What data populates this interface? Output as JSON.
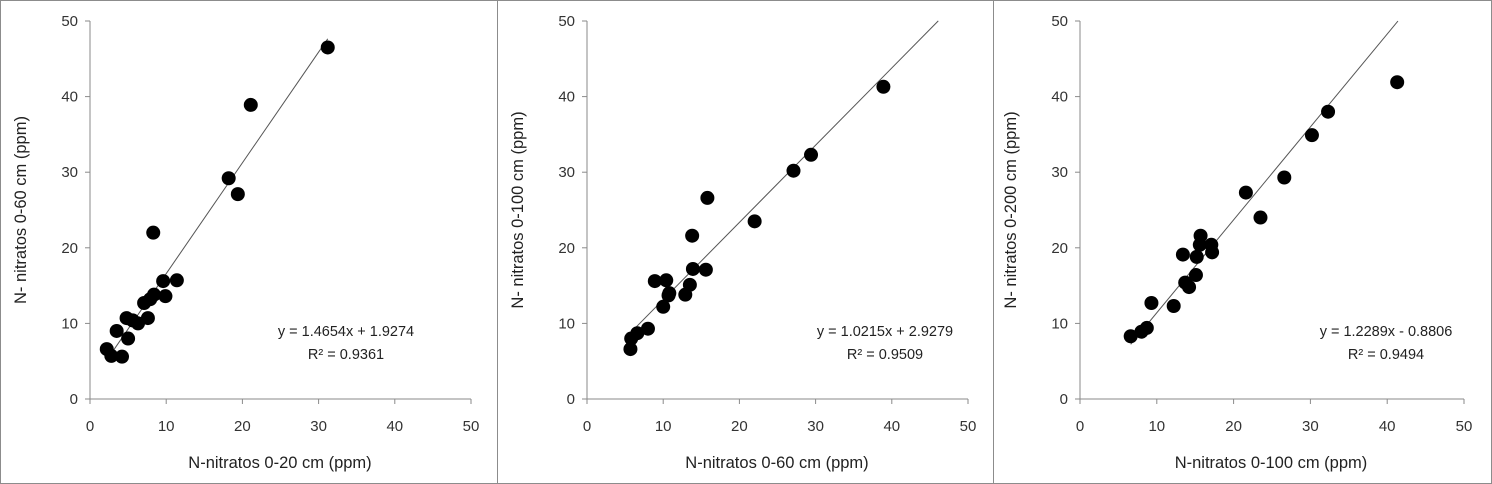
{
  "chart_data": [
    {
      "type": "scatter",
      "xlabel": "N-nitratos 0-20 cm (ppm)",
      "ylabel": "N- nitratos 0-60 cm (ppm)",
      "xlim": [
        0,
        50
      ],
      "ylim": [
        0,
        50
      ],
      "xticks": [
        "0",
        "10",
        "20",
        "30",
        "40",
        "50"
      ],
      "yticks": [
        "0",
        "10",
        "20",
        "30",
        "40",
        "50"
      ],
      "equation": "y = 1.4654x + 1.9274",
      "r2": "R² = 0.9361",
      "trendline": {
        "slope": 1.4654,
        "intercept": 1.9274,
        "x_range": [
          2.2,
          31.2
        ]
      },
      "points": [
        {
          "x": 2.2,
          "y": 6.6
        },
        {
          "x": 2.8,
          "y": 5.7
        },
        {
          "x": 3.5,
          "y": 9.0
        },
        {
          "x": 4.2,
          "y": 5.6
        },
        {
          "x": 4.8,
          "y": 10.7
        },
        {
          "x": 5.0,
          "y": 8.0
        },
        {
          "x": 5.6,
          "y": 10.4
        },
        {
          "x": 6.3,
          "y": 10.0
        },
        {
          "x": 7.1,
          "y": 12.7
        },
        {
          "x": 7.6,
          "y": 10.7
        },
        {
          "x": 7.9,
          "y": 13.2
        },
        {
          "x": 8.4,
          "y": 13.8
        },
        {
          "x": 8.3,
          "y": 22.0
        },
        {
          "x": 9.6,
          "y": 15.6
        },
        {
          "x": 9.9,
          "y": 13.6
        },
        {
          "x": 11.4,
          "y": 15.7
        },
        {
          "x": 18.2,
          "y": 29.2
        },
        {
          "x": 19.4,
          "y": 27.1
        },
        {
          "x": 21.1,
          "y": 38.9
        },
        {
          "x": 31.2,
          "y": 46.5
        }
      ]
    },
    {
      "type": "scatter",
      "xlabel": "N-nitratos 0-60 cm (ppm)",
      "ylabel": "N- nitratos 0-100 cm (ppm)",
      "xlim": [
        0,
        50
      ],
      "ylim": [
        0,
        50
      ],
      "xticks": [
        "0",
        "10",
        "20",
        "30",
        "40",
        "50"
      ],
      "yticks": [
        "0",
        "10",
        "20",
        "30",
        "40",
        "50"
      ],
      "equation": "y = 1.0215x + 2.9279",
      "r2": "R² = 0.9509",
      "trendline": {
        "slope": 1.0215,
        "intercept": 2.9279,
        "x_range": [
          5.8,
          46.1
        ]
      },
      "points": [
        {
          "x": 5.7,
          "y": 6.6
        },
        {
          "x": 5.8,
          "y": 8.0
        },
        {
          "x": 6.6,
          "y": 8.7
        },
        {
          "x": 8.0,
          "y": 9.3
        },
        {
          "x": 8.9,
          "y": 15.6
        },
        {
          "x": 10.0,
          "y": 12.2
        },
        {
          "x": 10.4,
          "y": 15.7
        },
        {
          "x": 10.7,
          "y": 13.7
        },
        {
          "x": 10.8,
          "y": 14.0
        },
        {
          "x": 12.9,
          "y": 13.8
        },
        {
          "x": 13.5,
          "y": 15.1
        },
        {
          "x": 13.8,
          "y": 21.6
        },
        {
          "x": 13.9,
          "y": 17.2
        },
        {
          "x": 15.6,
          "y": 17.1
        },
        {
          "x": 15.8,
          "y": 26.6
        },
        {
          "x": 22.0,
          "y": 23.5
        },
        {
          "x": 27.1,
          "y": 30.2
        },
        {
          "x": 29.4,
          "y": 32.3
        },
        {
          "x": 38.9,
          "y": 41.3
        }
      ]
    },
    {
      "type": "scatter",
      "xlabel": "N-nitratos 0-100 cm (ppm)",
      "ylabel": "N- nitratos 0-200 cm (ppm)",
      "xlim": [
        0,
        50
      ],
      "ylim": [
        0,
        50
      ],
      "xticks": [
        "0",
        "10",
        "20",
        "30",
        "40",
        "50"
      ],
      "yticks": [
        "0",
        "10",
        "20",
        "30",
        "40",
        "50"
      ],
      "equation": "y = 1.2289x - 0.8806",
      "r2": "R² = 0.9494",
      "trendline": {
        "slope": 1.2289,
        "intercept": -0.8806,
        "x_range": [
          6.6,
          41.4
        ]
      },
      "points": [
        {
          "x": 6.6,
          "y": 8.3
        },
        {
          "x": 8.0,
          "y": 8.9
        },
        {
          "x": 8.7,
          "y": 9.4
        },
        {
          "x": 9.3,
          "y": 12.7
        },
        {
          "x": 12.2,
          "y": 12.3
        },
        {
          "x": 13.4,
          "y": 19.1
        },
        {
          "x": 13.7,
          "y": 15.4
        },
        {
          "x": 14.2,
          "y": 14.8
        },
        {
          "x": 15.1,
          "y": 16.4
        },
        {
          "x": 15.2,
          "y": 18.8
        },
        {
          "x": 15.6,
          "y": 20.4
        },
        {
          "x": 15.7,
          "y": 21.6
        },
        {
          "x": 17.1,
          "y": 20.4
        },
        {
          "x": 17.2,
          "y": 19.4
        },
        {
          "x": 21.6,
          "y": 27.3
        },
        {
          "x": 23.5,
          "y": 24.0
        },
        {
          "x": 26.6,
          "y": 29.3
        },
        {
          "x": 30.2,
          "y": 34.9
        },
        {
          "x": 32.3,
          "y": 38.0
        },
        {
          "x": 41.3,
          "y": 41.9
        }
      ]
    }
  ]
}
